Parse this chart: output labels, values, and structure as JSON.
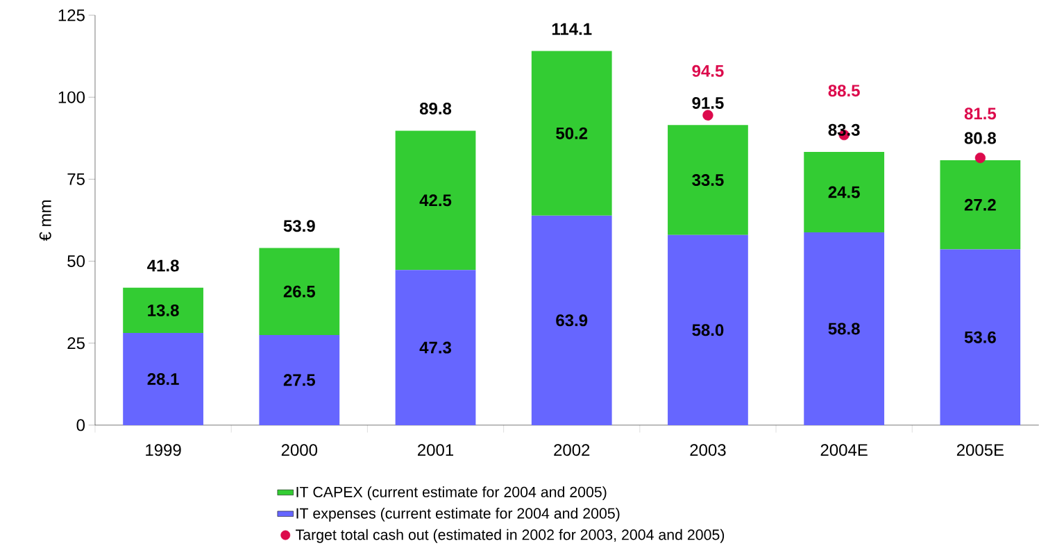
{
  "chart_data": {
    "type": "bar",
    "stacked": true,
    "ylabel": "€ mm",
    "categories": [
      "1999",
      "2000",
      "2001",
      "2002",
      "2003",
      "2004E",
      "2005E"
    ],
    "series": [
      {
        "name": "IT expenses (current estimate for 2004 and 2005)",
        "color": "#6666ff",
        "values": [
          28.1,
          27.5,
          47.3,
          63.9,
          58.0,
          58.8,
          53.6
        ],
        "value_labels": [
          "28.1",
          "27.5",
          "47.3",
          "63.9",
          "58.0",
          "58.8",
          "53.6"
        ]
      },
      {
        "name": "IT CAPEX (current estimate for 2004 and 2005)",
        "color": "#33cc33",
        "values": [
          13.8,
          26.5,
          42.5,
          50.2,
          33.5,
          24.5,
          27.2
        ],
        "value_labels": [
          "13.8",
          "26.5",
          "42.5",
          "50.2",
          "33.5",
          "24.5",
          "27.2"
        ]
      },
      {
        "name": "Target total cash out (estimated in 2002 for 2003, 2004 and 2005)",
        "type": "scatter",
        "marker": "circle",
        "color": "#dc0a4c",
        "values": [
          null,
          null,
          null,
          null,
          94.5,
          88.5,
          81.5
        ],
        "value_labels": [
          null,
          null,
          null,
          null,
          "94.5",
          "88.5",
          "81.5"
        ]
      }
    ],
    "totals": [
      "41.8",
      "53.9",
      "89.8",
      "114.1",
      "91.5",
      "83.3",
      "80.8"
    ],
    "grid": false,
    "legend": "bottom",
    "ylim": [
      0,
      125
    ],
    "yticks": [
      0,
      25,
      50,
      75,
      100,
      125
    ]
  }
}
